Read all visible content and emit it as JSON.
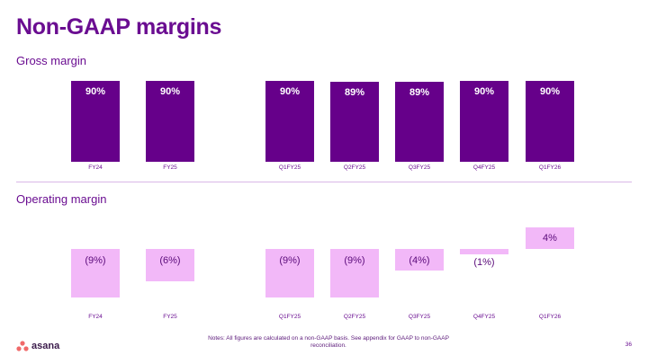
{
  "title": "Non-GAAP margins",
  "footer": {
    "note": "Notes: All figures are calculated on a non-GAAP basis. See appendix for GAAP to non-GAAP reconciliation.",
    "page_number": "36",
    "brand": "asana"
  },
  "colors": {
    "title": "#6a0d91",
    "gross_bar": "#66008a",
    "operating_bar": "#f2b8f8"
  },
  "chart_data": [
    {
      "type": "bar",
      "title": "Gross margin",
      "categories": [
        "FY24",
        "FY25",
        "Q1FY25",
        "Q2FY25",
        "Q3FY25",
        "Q4FY25",
        "Q1FY26"
      ],
      "values": [
        90,
        90,
        90,
        89,
        89,
        90,
        90
      ],
      "labels": [
        "90%",
        "90%",
        "90%",
        "89%",
        "89%",
        "90%",
        "90%"
      ],
      "unit": "%",
      "grid": false
    },
    {
      "type": "bar",
      "title": "Operating margin",
      "categories": [
        "FY24",
        "FY25",
        "Q1FY25",
        "Q2FY25",
        "Q3FY25",
        "Q4FY25",
        "Q1FY26"
      ],
      "values": [
        -9,
        -6,
        -9,
        -9,
        -4,
        -1,
        4
      ],
      "labels": [
        "(9%)",
        "(6%)",
        "(9%)",
        "(9%)",
        "(4%)",
        "(1%)",
        "4%"
      ],
      "unit": "%",
      "grid": false
    }
  ]
}
